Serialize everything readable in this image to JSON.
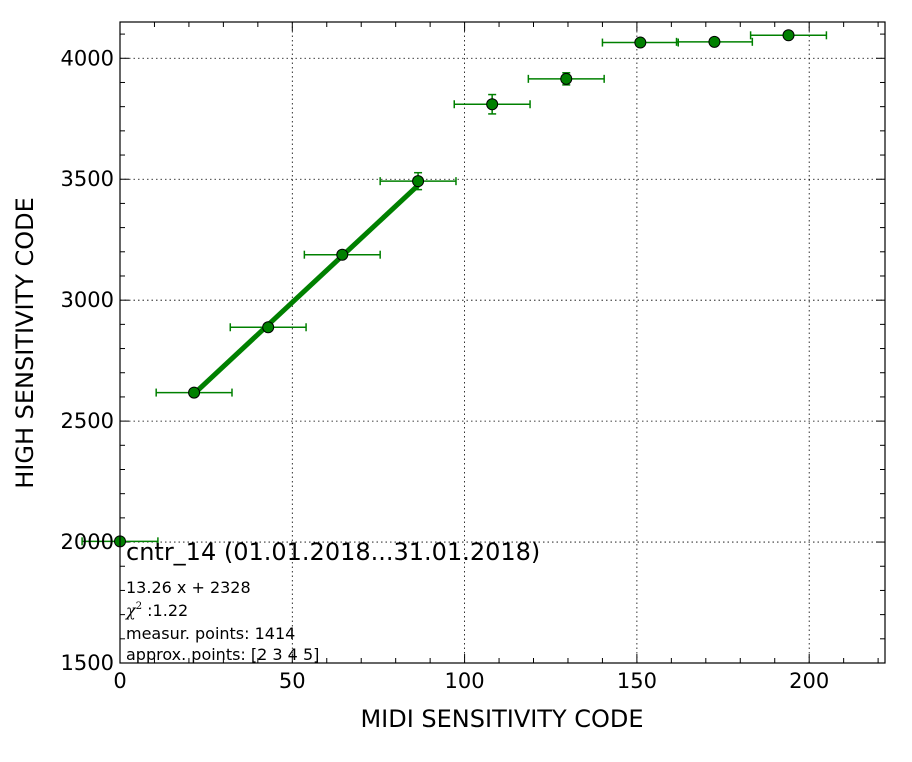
{
  "chart_data": {
    "type": "scatter",
    "title": "cntr_14 (01.01.2018...31.01.2018)",
    "xlabel": "MIDI SENSITIVITY CODE",
    "ylabel": "HIGH SENSITIVITY CODE",
    "xlim": [
      0,
      222
    ],
    "ylim": [
      1500,
      4150
    ],
    "xticks": [
      0,
      50,
      100,
      150,
      200
    ],
    "yticks": [
      1500,
      2000,
      2500,
      3000,
      3500,
      4000
    ],
    "grid": true,
    "color": "#008000",
    "points": [
      {
        "x": 0,
        "y": 2003,
        "xerr": 11,
        "yerr": 0
      },
      {
        "x": 21.5,
        "y": 2618,
        "xerr": 11,
        "yerr": 10
      },
      {
        "x": 43,
        "y": 2888,
        "xerr": 11,
        "yerr": 15
      },
      {
        "x": 64.5,
        "y": 3188,
        "xerr": 11,
        "yerr": 15
      },
      {
        "x": 86.5,
        "y": 3492,
        "xerr": 11,
        "yerr": 35
      },
      {
        "x": 108,
        "y": 3810,
        "xerr": 11,
        "yerr": 40
      },
      {
        "x": 129.5,
        "y": 3915,
        "xerr": 11,
        "yerr": 25
      },
      {
        "x": 151,
        "y": 4065,
        "xerr": 11,
        "yerr": 12
      },
      {
        "x": 172.5,
        "y": 4068,
        "xerr": 11,
        "yerr": 12
      },
      {
        "x": 194,
        "y": 4095,
        "xerr": 11,
        "yerr": 10
      }
    ],
    "fit": {
      "slope": 13.26,
      "intercept": 2328,
      "x_range": [
        21.5,
        86.5
      ]
    },
    "annotations": {
      "equation": "13.26 x + 2328",
      "chi_symbol": "χ",
      "chi_power": "2",
      "chi_value": " :1.22",
      "measured": "measur. points: 1414",
      "approx": "approx. points: [2 3 4 5]"
    }
  }
}
